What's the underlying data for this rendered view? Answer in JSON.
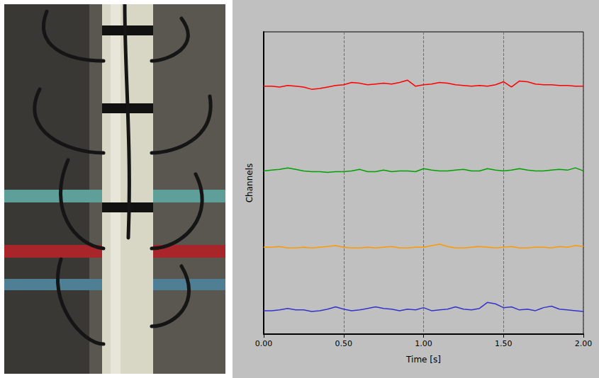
{
  "chart_data": {
    "type": "line",
    "xlabel": "Time [s]",
    "ylabel": "Channels",
    "x": [
      0,
      0.05,
      0.1,
      0.15,
      0.2,
      0.25,
      0.3,
      0.35,
      0.4,
      0.45,
      0.5,
      0.55,
      0.6,
      0.65,
      0.7,
      0.75,
      0.8,
      0.85,
      0.9,
      0.95,
      1.0,
      1.05,
      1.1,
      1.15,
      1.2,
      1.25,
      1.3,
      1.35,
      1.4,
      1.45,
      1.5,
      1.55,
      1.6,
      1.65,
      1.7,
      1.75,
      1.8,
      1.85,
      1.9,
      1.95,
      2.0
    ],
    "series": [
      {
        "color": "#ff0000",
        "values": [
          3.28,
          3.28,
          3.27,
          3.29,
          3.28,
          3.27,
          3.24,
          3.25,
          3.27,
          3.29,
          3.3,
          3.33,
          3.32,
          3.3,
          3.31,
          3.32,
          3.31,
          3.33,
          3.36,
          3.28,
          3.3,
          3.31,
          3.33,
          3.32,
          3.3,
          3.29,
          3.28,
          3.29,
          3.28,
          3.3,
          3.34,
          3.27,
          3.35,
          3.34,
          3.31,
          3.3,
          3.3,
          3.29,
          3.29,
          3.28,
          3.28
        ]
      },
      {
        "color": "#00a000",
        "values": [
          2.16,
          2.17,
          2.18,
          2.2,
          2.18,
          2.16,
          2.15,
          2.15,
          2.14,
          2.15,
          2.15,
          2.16,
          2.18,
          2.15,
          2.15,
          2.17,
          2.15,
          2.16,
          2.16,
          2.15,
          2.19,
          2.17,
          2.16,
          2.16,
          2.17,
          2.18,
          2.16,
          2.16,
          2.19,
          2.17,
          2.16,
          2.17,
          2.19,
          2.17,
          2.16,
          2.16,
          2.17,
          2.18,
          2.17,
          2.2,
          2.16
        ]
      },
      {
        "color": "#ff9900",
        "values": [
          1.15,
          1.15,
          1.16,
          1.14,
          1.14,
          1.15,
          1.14,
          1.15,
          1.16,
          1.17,
          1.15,
          1.14,
          1.14,
          1.15,
          1.14,
          1.15,
          1.16,
          1.14,
          1.14,
          1.15,
          1.15,
          1.17,
          1.19,
          1.16,
          1.14,
          1.14,
          1.15,
          1.16,
          1.15,
          1.14,
          1.15,
          1.16,
          1.14,
          1.14,
          1.15,
          1.15,
          1.14,
          1.16,
          1.15,
          1.17,
          1.16
        ]
      },
      {
        "color": "#3333cc",
        "values": [
          0.31,
          0.31,
          0.32,
          0.34,
          0.32,
          0.32,
          0.3,
          0.31,
          0.33,
          0.36,
          0.33,
          0.31,
          0.32,
          0.34,
          0.36,
          0.34,
          0.33,
          0.31,
          0.33,
          0.32,
          0.35,
          0.31,
          0.32,
          0.33,
          0.36,
          0.33,
          0.32,
          0.34,
          0.42,
          0.4,
          0.35,
          0.36,
          0.32,
          0.33,
          0.31,
          0.35,
          0.37,
          0.33,
          0.32,
          0.31,
          0.3
        ]
      }
    ],
    "xlim": [
      0,
      2
    ],
    "xticks": [
      {
        "value": 0,
        "label": "0.00"
      },
      {
        "value": 0.5,
        "label": "0.50"
      },
      {
        "value": 1,
        "label": "1.00"
      },
      {
        "value": 1.5,
        "label": "1.50"
      },
      {
        "value": 2,
        "label": "2.00"
      }
    ],
    "ylim": [
      0,
      4
    ],
    "grid": "x",
    "tick_labels": "x",
    "marker": "none",
    "line_style": "solid"
  }
}
